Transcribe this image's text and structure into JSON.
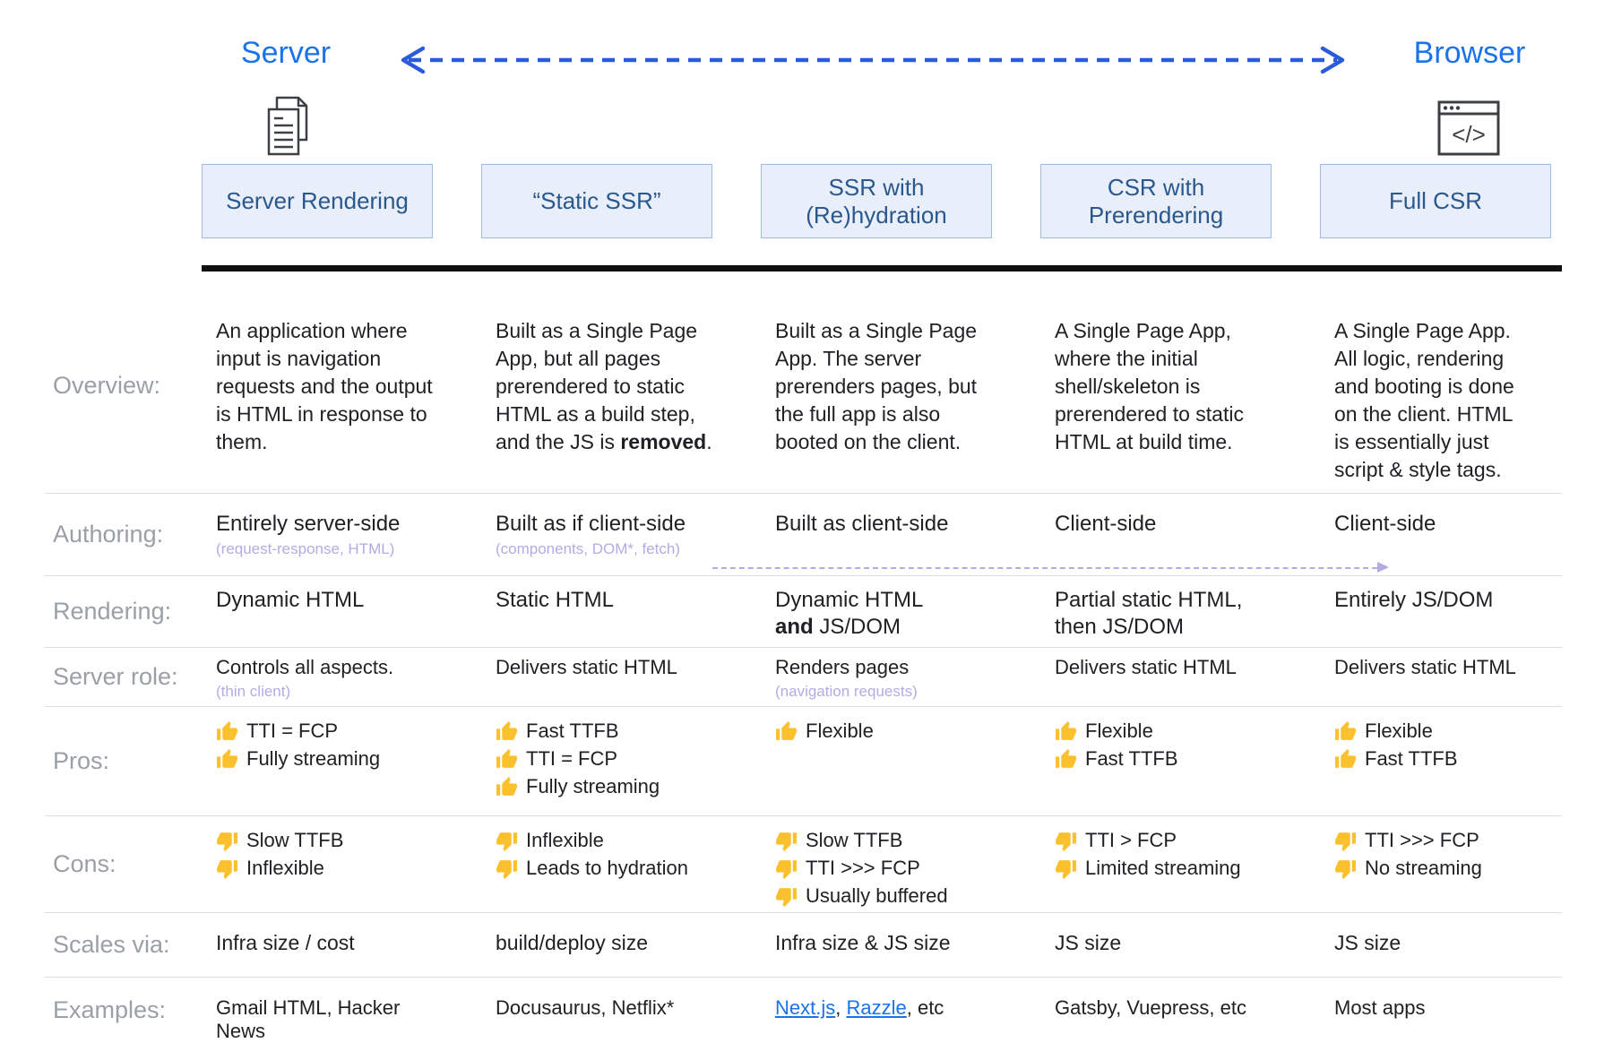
{
  "header": {
    "server_label": "Server",
    "browser_label": "Browser"
  },
  "icons": {
    "server": "document-pages-icon",
    "browser": "browser-window-icon",
    "pros": "thumbs-up-icon",
    "cons": "thumbs-down-icon"
  },
  "colors": {
    "accent_blue": "#1a73e8",
    "top_arrow_blue": "#2a5cd9",
    "box_text": "#29588c",
    "box_bg": "#e9eefb",
    "box_border": "#9fb8e2",
    "note_purple": "#b3abe3",
    "thumb_yellow": "#fbc02d",
    "body_text": "#202124",
    "label_gray": "#9aa0a6"
  },
  "row_labels": {
    "overview": "Overview:",
    "authoring": "Authoring:",
    "rendering": "Rendering:",
    "server_role": "Server role:",
    "pros": "Pros:",
    "cons": "Cons:",
    "scales_via": "Scales via:",
    "examples": "Examples:"
  },
  "columns": [
    {
      "title": "Server Rendering",
      "overview": [
        {
          "text": "An application where input is navigation requests and the output is HTML in response to them."
        }
      ],
      "authoring": {
        "main": "Entirely server-side",
        "note": "(request-response, HTML)"
      },
      "rendering": [
        {
          "text": "Dynamic HTML"
        }
      ],
      "server_role": {
        "main": "Controls all aspects.",
        "note": "(thin client)"
      },
      "pros": [
        "TTI = FCP",
        "Fully streaming"
      ],
      "cons": [
        "Slow TTFB",
        "Inflexible"
      ],
      "scales_via": "Infra size / cost",
      "examples": [
        {
          "text": "Gmail HTML, Hacker News"
        }
      ]
    },
    {
      "title": "“Static SSR”",
      "overview": [
        {
          "text": "Built as a Single Page App, but all pages prerendered to static HTML as a build step, and the JS is "
        },
        {
          "text": "removed",
          "bold": true
        },
        {
          "text": "."
        }
      ],
      "authoring": {
        "main": "Built as if client-side",
        "note": "(components, DOM*, fetch)"
      },
      "rendering": [
        {
          "text": "Static HTML"
        }
      ],
      "server_role": {
        "main": "Delivers static HTML"
      },
      "pros": [
        "Fast TTFB",
        "TTI = FCP",
        "Fully streaming"
      ],
      "cons": [
        "Inflexible",
        "Leads to hydration"
      ],
      "scales_via": "build/deploy size",
      "examples": [
        {
          "text": "Docusaurus, Netflix*"
        }
      ]
    },
    {
      "title": "SSR with (Re)hydration",
      "overview": [
        {
          "text": "Built as a Single Page App. The server prerenders pages, but the full app is also booted on the client."
        }
      ],
      "authoring": {
        "main": "Built as client-side"
      },
      "rendering": [
        {
          "text": "Dynamic HTML"
        },
        {
          "br": true
        },
        {
          "text": "and",
          "bold": true
        },
        {
          "text": " JS/DOM"
        }
      ],
      "server_role": {
        "main": "Renders pages",
        "note": "(navigation requests)"
      },
      "pros": [
        "Flexible"
      ],
      "cons": [
        "Slow TTFB",
        "TTI >>> FCP",
        "Usually buffered"
      ],
      "scales_via": "Infra size & JS size",
      "examples": [
        {
          "text": "Next.js",
          "link": true
        },
        {
          "text": ", "
        },
        {
          "text": "Razzle",
          "link": true
        },
        {
          "text": ", etc"
        }
      ]
    },
    {
      "title": "CSR with Prerendering",
      "overview": [
        {
          "text": "A Single Page App, where the initial shell/skeleton is prerendered to static HTML at build time."
        }
      ],
      "authoring": {
        "main": "Client-side"
      },
      "rendering": [
        {
          "text": "Partial static HTML,"
        },
        {
          "br": true
        },
        {
          "text": "then JS/DOM"
        }
      ],
      "server_role": {
        "main": "Delivers static HTML"
      },
      "pros": [
        "Flexible",
        "Fast TTFB"
      ],
      "cons": [
        "TTI > FCP",
        "Limited streaming"
      ],
      "scales_via": "JS size",
      "examples": [
        {
          "text": "Gatsby, Vuepress, etc"
        }
      ]
    },
    {
      "title": "Full CSR",
      "overview": [
        {
          "text": "A Single Page App. All logic, rendering and booting is done on the client. HTML is essentially just script & style tags."
        }
      ],
      "authoring": {
        "main": "Client-side"
      },
      "rendering": [
        {
          "text": "Entirely JS/DOM"
        }
      ],
      "server_role": {
        "main": "Delivers static HTML"
      },
      "pros": [
        "Flexible",
        "Fast TTFB"
      ],
      "cons": [
        "TTI >>> FCP",
        "No streaming"
      ],
      "scales_via": "JS size",
      "examples": [
        {
          "text": "Most apps"
        }
      ]
    }
  ]
}
